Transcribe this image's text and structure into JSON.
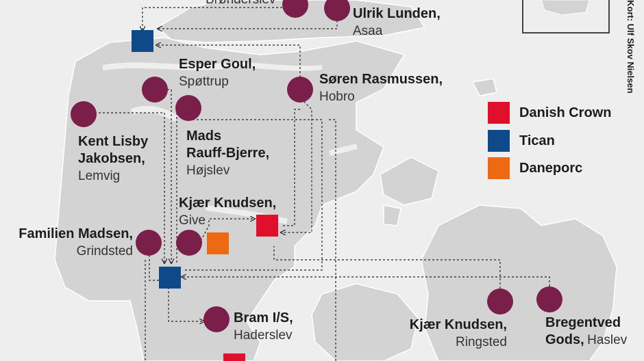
{
  "credit": "Kort: Ulf Skov Nielsen",
  "legend": [
    {
      "label": "Danish Crown",
      "color": "#e0102c"
    },
    {
      "label": "Tican",
      "color": "#0e4a8a"
    },
    {
      "label": "Daneporc",
      "color": "#ee6a12"
    }
  ],
  "farms": [
    {
      "name": "Ulrik Lunden,",
      "place": "Asaa"
    },
    {
      "name": "Esper Goul,",
      "place": "Spøttrup"
    },
    {
      "name": "Søren Rasmussen,",
      "place": "Hobro"
    },
    {
      "name_line1": "Kent Lisby",
      "name_line2": "Jakobsen,",
      "place": "Lemvig"
    },
    {
      "name_line1": "Mads",
      "name_line2": "Rauff-Bjerre,",
      "place": "Højslev"
    },
    {
      "name": "Kjær Knudsen,",
      "place": "Give"
    },
    {
      "name": "Familien Madsen,",
      "place": "Grindsted"
    },
    {
      "name": "Bram I/S,",
      "place": "Haderslev"
    },
    {
      "name": "Kjær Knudsen,",
      "place": "Ringsted"
    },
    {
      "name_line1": "Bregentved",
      "name_line2": "Gods,",
      "place": "Haslev"
    },
    {
      "place": "Brønderslev"
    }
  ],
  "colors": {
    "farm": "#7a1f4a",
    "land": "#d4d4d4",
    "sea": "#eeeeee"
  }
}
